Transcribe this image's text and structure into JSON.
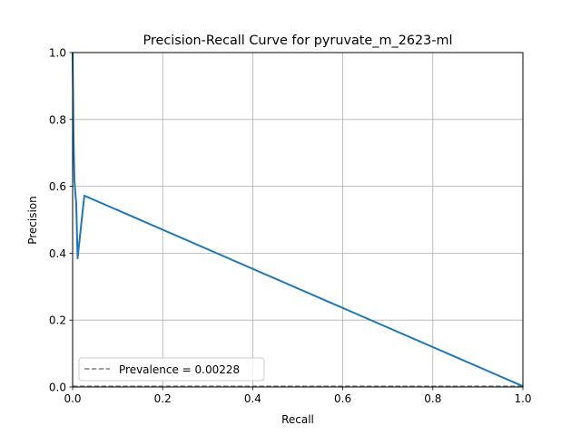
{
  "chart_data": {
    "type": "line",
    "title": "Precision-Recall Curve for pyruvate_m_2623-ml",
    "xlabel": "Recall",
    "ylabel": "Precision",
    "xlim": [
      0,
      1
    ],
    "ylim": [
      0,
      1
    ],
    "grid": true,
    "x_ticks": [
      "0.0",
      "0.2",
      "0.4",
      "0.6",
      "0.8",
      "1.0"
    ],
    "y_ticks": [
      "0.0",
      "0.2",
      "0.4",
      "0.6",
      "0.8",
      "1.0"
    ],
    "series": [
      {
        "color": "#1f77b4",
        "x": [
          0.0,
          0.002,
          0.004,
          0.006,
          0.008,
          0.011,
          0.026,
          1.0
        ],
        "y": [
          1.0,
          0.75,
          0.62,
          0.58,
          0.55,
          0.385,
          0.572,
          0.00228
        ]
      }
    ],
    "reference_lines": [
      {
        "name": "Prevalence = 0.00228",
        "y": 0.00228,
        "style": "dashed",
        "color": "#808080"
      }
    ],
    "legend": {
      "position": "lower-left",
      "entries": [
        "Prevalence = 0.00228"
      ]
    }
  }
}
